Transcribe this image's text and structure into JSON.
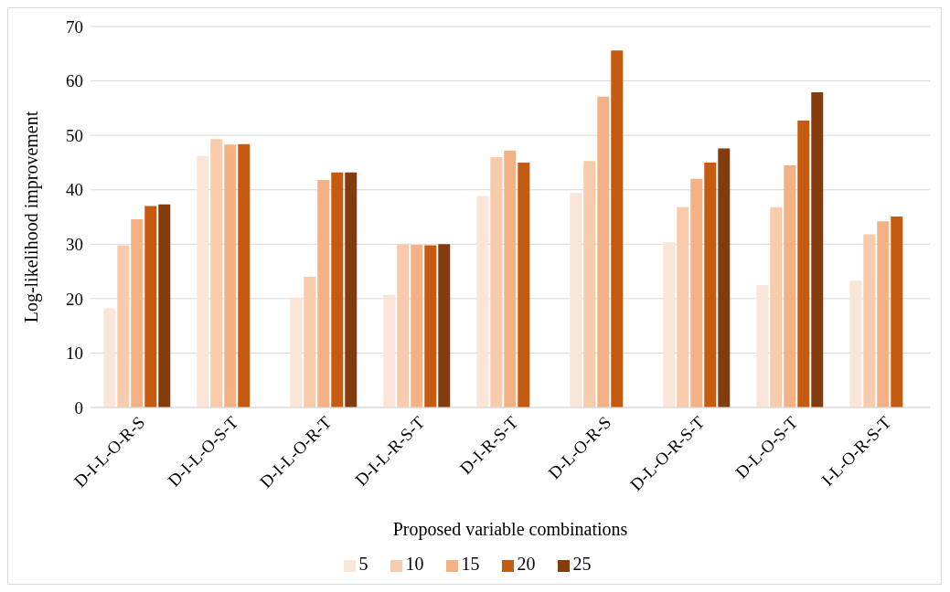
{
  "chart_data": {
    "type": "bar",
    "xlabel": "Proposed variable combinations",
    "ylabel": "Log-likelihood improvement",
    "categories": [
      "D-I-L-O-R-S",
      "D-I-L-O-S-T",
      "D-I-L-O-R-T",
      "D-I-L-R-S-T",
      "D-I-R-S-T",
      "D-L-O-R-S",
      "D-L-O-R-S-T",
      "D-L-O-S-T",
      "I-L-O-R-S-T"
    ],
    "series": [
      {
        "name": "5",
        "color": "#fbe5d6",
        "values": [
          18.2,
          46.2,
          20.2,
          20.7,
          38.8,
          39.4,
          30.4,
          22.5,
          23.3
        ]
      },
      {
        "name": "10",
        "color": "#f8cbad",
        "values": [
          29.8,
          49.3,
          24,
          30,
          46,
          45.3,
          36.8,
          36.8,
          31.8
        ]
      },
      {
        "name": "15",
        "color": "#f4b183",
        "values": [
          34.6,
          48.3,
          41.8,
          29.9,
          47.2,
          57.1,
          42,
          44.5,
          34.2
        ]
      },
      {
        "name": "20",
        "color": "#c55a11",
        "values": [
          37,
          48.4,
          43.2,
          29.8,
          45,
          65.6,
          45,
          52.7,
          35.1
        ]
      },
      {
        "name": "25",
        "color": "#843c0c",
        "values": [
          37.3,
          null,
          43.2,
          30,
          null,
          null,
          47.6,
          57.9,
          null
        ]
      }
    ],
    "ylim": [
      0,
      70
    ],
    "yticks": [
      0,
      10,
      20,
      30,
      40,
      50,
      60,
      70
    ],
    "grid": "y",
    "legend": "bottom"
  }
}
